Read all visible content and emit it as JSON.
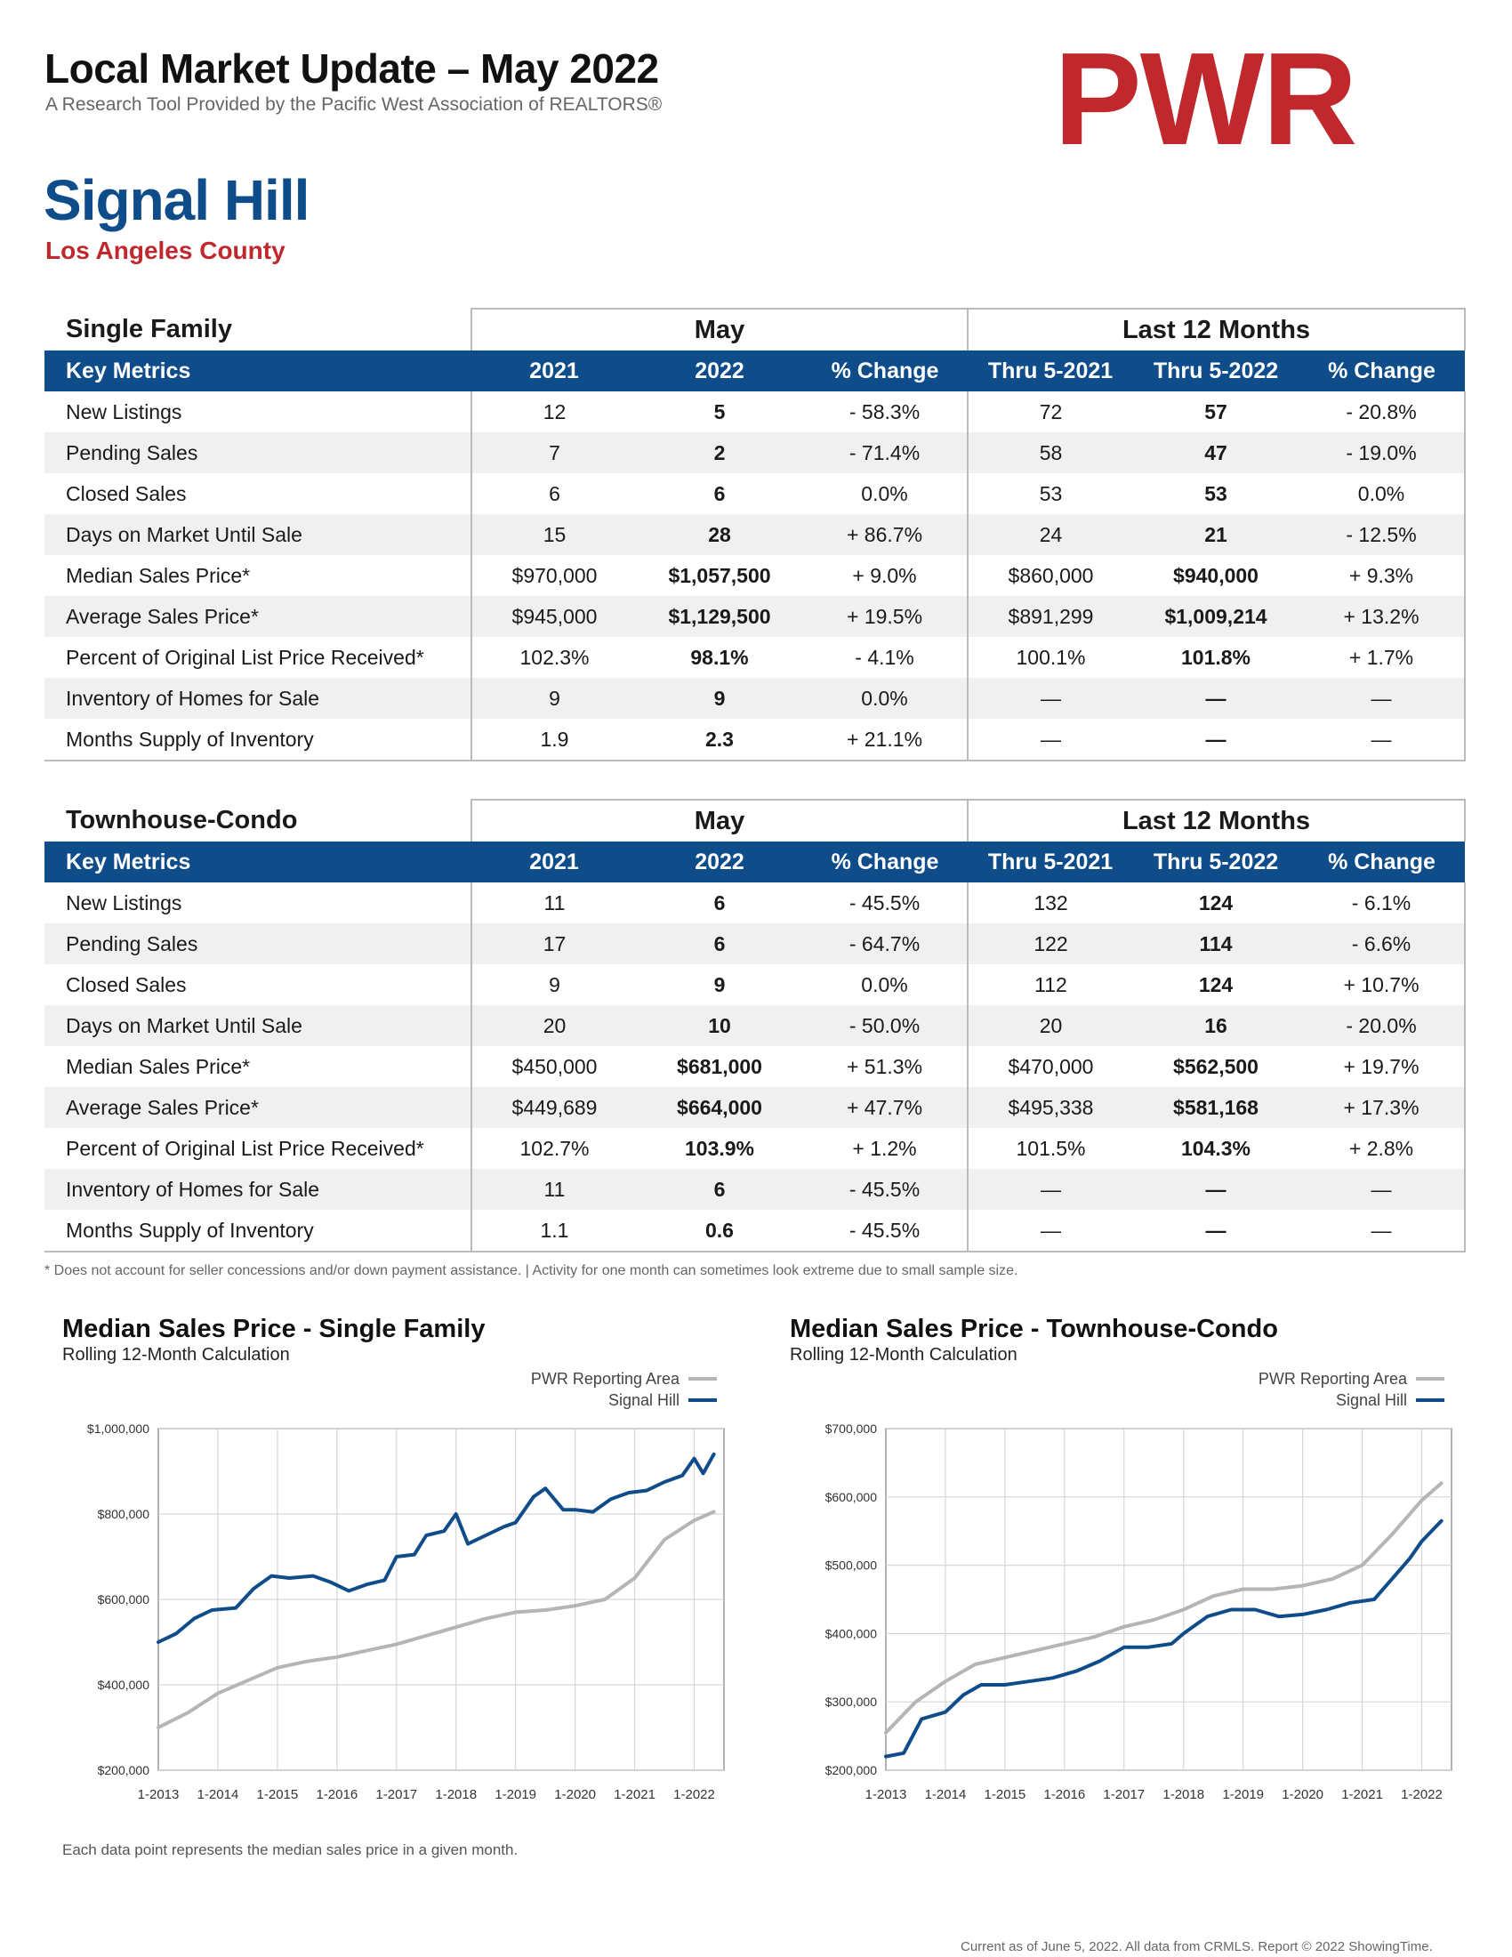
{
  "header": {
    "title": "Local Market Update – May 2022",
    "subtitle": "A Research Tool Provided by the Pacific West Association of REALTORS®",
    "logo_text": "PWR",
    "city": "Signal Hill",
    "county": "Los Angeles County"
  },
  "columns": {
    "key_metrics": "Key Metrics",
    "group_month": "May",
    "group_12": "Last 12 Months",
    "c2021": "2021",
    "c2022": "2022",
    "pct": "% Change",
    "thru2021": "Thru 5-2021",
    "thru2022": "Thru 5-2022"
  },
  "tables": [
    {
      "section": "Single Family",
      "rows": [
        [
          "New Listings",
          "12",
          "5",
          "- 58.3%",
          "72",
          "57",
          "- 20.8%"
        ],
        [
          "Pending Sales",
          "7",
          "2",
          "- 71.4%",
          "58",
          "47",
          "- 19.0%"
        ],
        [
          "Closed Sales",
          "6",
          "6",
          "0.0%",
          "53",
          "53",
          "0.0%"
        ],
        [
          "Days on Market Until Sale",
          "15",
          "28",
          "+ 86.7%",
          "24",
          "21",
          "- 12.5%"
        ],
        [
          "Median Sales Price*",
          "$970,000",
          "$1,057,500",
          "+ 9.0%",
          "$860,000",
          "$940,000",
          "+ 9.3%"
        ],
        [
          "Average Sales Price*",
          "$945,000",
          "$1,129,500",
          "+ 19.5%",
          "$891,299",
          "$1,009,214",
          "+ 13.2%"
        ],
        [
          "Percent of Original List Price Received*",
          "102.3%",
          "98.1%",
          "- 4.1%",
          "100.1%",
          "101.8%",
          "+ 1.7%"
        ],
        [
          "Inventory of Homes for Sale",
          "9",
          "9",
          "0.0%",
          "—",
          "—",
          "—"
        ],
        [
          "Months Supply of Inventory",
          "1.9",
          "2.3",
          "+ 21.1%",
          "—",
          "—",
          "—"
        ]
      ]
    },
    {
      "section": "Townhouse-Condo",
      "rows": [
        [
          "New Listings",
          "11",
          "6",
          "- 45.5%",
          "132",
          "124",
          "- 6.1%"
        ],
        [
          "Pending Sales",
          "17",
          "6",
          "- 64.7%",
          "122",
          "114",
          "- 6.6%"
        ],
        [
          "Closed Sales",
          "9",
          "9",
          "0.0%",
          "112",
          "124",
          "+ 10.7%"
        ],
        [
          "Days on Market Until Sale",
          "20",
          "10",
          "- 50.0%",
          "20",
          "16",
          "- 20.0%"
        ],
        [
          "Median Sales Price*",
          "$450,000",
          "$681,000",
          "+ 51.3%",
          "$470,000",
          "$562,500",
          "+ 19.7%"
        ],
        [
          "Average Sales Price*",
          "$449,689",
          "$664,000",
          "+ 47.7%",
          "$495,338",
          "$581,168",
          "+ 17.3%"
        ],
        [
          "Percent of Original List Price Received*",
          "102.7%",
          "103.9%",
          "+ 1.2%",
          "101.5%",
          "104.3%",
          "+ 2.8%"
        ],
        [
          "Inventory of Homes for Sale",
          "11",
          "6",
          "- 45.5%",
          "—",
          "—",
          "—"
        ],
        [
          "Months Supply of Inventory",
          "1.1",
          "0.6",
          "- 45.5%",
          "—",
          "—",
          "—"
        ]
      ]
    }
  ],
  "footnote": "* Does not account for seller concessions and/or down payment assistance. | Activity for one month can sometimes look extreme due to small sample size.",
  "caption": "Each data point represents the median sales price in a given month.",
  "credit": "Current as of June 5, 2022. All data from CRMLS. Report © 2022 ShowingTime.",
  "colors": {
    "brand_blue": "#0f4c8a",
    "brand_red": "#c0282d",
    "area_gray": "#b5b5b5"
  },
  "chart_data": [
    {
      "type": "line",
      "title": "Median Sales Price - Single Family",
      "subtitle": "Rolling 12-Month Calculation",
      "ylim": [
        200000,
        1000000
      ],
      "yticks": [
        200000,
        400000,
        600000,
        800000,
        1000000
      ],
      "ytick_labels": [
        "$200,000",
        "$400,000",
        "$600,000",
        "$800,000",
        "$1,000,000"
      ],
      "xtick_labels": [
        "1-2013",
        "1-2014",
        "1-2015",
        "1-2016",
        "1-2017",
        "1-2018",
        "1-2019",
        "1-2020",
        "1-2021",
        "1-2022"
      ],
      "x_start_year": 2013,
      "series": [
        {
          "name": "PWR Reporting Area",
          "color": "#b5b5b5",
          "points": [
            [
              2013.0,
              300000
            ],
            [
              2013.5,
              335000
            ],
            [
              2014.0,
              380000
            ],
            [
              2014.5,
              410000
            ],
            [
              2015.0,
              440000
            ],
            [
              2015.5,
              455000
            ],
            [
              2016.0,
              465000
            ],
            [
              2016.5,
              480000
            ],
            [
              2017.0,
              495000
            ],
            [
              2017.5,
              515000
            ],
            [
              2018.0,
              535000
            ],
            [
              2018.5,
              555000
            ],
            [
              2019.0,
              570000
            ],
            [
              2019.5,
              575000
            ],
            [
              2020.0,
              585000
            ],
            [
              2020.5,
              600000
            ],
            [
              2021.0,
              650000
            ],
            [
              2021.5,
              740000
            ],
            [
              2022.0,
              785000
            ],
            [
              2022.33,
              805000
            ]
          ]
        },
        {
          "name": "Signal Hill",
          "color": "#0f4c8a",
          "points": [
            [
              2013.0,
              500000
            ],
            [
              2013.3,
              520000
            ],
            [
              2013.6,
              555000
            ],
            [
              2013.9,
              575000
            ],
            [
              2014.3,
              580000
            ],
            [
              2014.6,
              625000
            ],
            [
              2014.9,
              655000
            ],
            [
              2015.2,
              650000
            ],
            [
              2015.6,
              655000
            ],
            [
              2015.9,
              640000
            ],
            [
              2016.2,
              620000
            ],
            [
              2016.5,
              635000
            ],
            [
              2016.8,
              645000
            ],
            [
              2017.0,
              700000
            ],
            [
              2017.3,
              705000
            ],
            [
              2017.5,
              750000
            ],
            [
              2017.8,
              760000
            ],
            [
              2018.0,
              800000
            ],
            [
              2018.2,
              730000
            ],
            [
              2018.5,
              750000
            ],
            [
              2018.8,
              770000
            ],
            [
              2019.0,
              780000
            ],
            [
              2019.3,
              840000
            ],
            [
              2019.5,
              860000
            ],
            [
              2019.8,
              810000
            ],
            [
              2020.0,
              810000
            ],
            [
              2020.3,
              805000
            ],
            [
              2020.6,
              835000
            ],
            [
              2020.9,
              850000
            ],
            [
              2021.2,
              855000
            ],
            [
              2021.5,
              875000
            ],
            [
              2021.8,
              890000
            ],
            [
              2022.0,
              930000
            ],
            [
              2022.15,
              895000
            ],
            [
              2022.33,
              940000
            ]
          ]
        }
      ]
    },
    {
      "type": "line",
      "title": "Median Sales Price - Townhouse-Condo",
      "subtitle": "Rolling 12-Month Calculation",
      "ylim": [
        200000,
        700000
      ],
      "yticks": [
        200000,
        300000,
        400000,
        500000,
        600000,
        700000
      ],
      "ytick_labels": [
        "$200,000",
        "$300,000",
        "$400,000",
        "$500,000",
        "$600,000",
        "$700,000"
      ],
      "xtick_labels": [
        "1-2013",
        "1-2014",
        "1-2015",
        "1-2016",
        "1-2017",
        "1-2018",
        "1-2019",
        "1-2020",
        "1-2021",
        "1-2022"
      ],
      "x_start_year": 2013,
      "series": [
        {
          "name": "PWR Reporting Area",
          "color": "#b5b5b5",
          "points": [
            [
              2013.0,
              255000
            ],
            [
              2013.5,
              300000
            ],
            [
              2014.0,
              330000
            ],
            [
              2014.5,
              355000
            ],
            [
              2015.0,
              365000
            ],
            [
              2015.5,
              375000
            ],
            [
              2016.0,
              385000
            ],
            [
              2016.5,
              395000
            ],
            [
              2017.0,
              410000
            ],
            [
              2017.5,
              420000
            ],
            [
              2018.0,
              435000
            ],
            [
              2018.5,
              455000
            ],
            [
              2019.0,
              465000
            ],
            [
              2019.5,
              465000
            ],
            [
              2020.0,
              470000
            ],
            [
              2020.5,
              480000
            ],
            [
              2021.0,
              500000
            ],
            [
              2021.5,
              545000
            ],
            [
              2022.0,
              595000
            ],
            [
              2022.33,
              620000
            ]
          ]
        },
        {
          "name": "Signal Hill",
          "color": "#0f4c8a",
          "points": [
            [
              2013.0,
              220000
            ],
            [
              2013.3,
              225000
            ],
            [
              2013.6,
              275000
            ],
            [
              2014.0,
              285000
            ],
            [
              2014.3,
              310000
            ],
            [
              2014.6,
              325000
            ],
            [
              2015.0,
              325000
            ],
            [
              2015.4,
              330000
            ],
            [
              2015.8,
              335000
            ],
            [
              2016.2,
              345000
            ],
            [
              2016.6,
              360000
            ],
            [
              2017.0,
              380000
            ],
            [
              2017.4,
              380000
            ],
            [
              2017.8,
              385000
            ],
            [
              2018.0,
              400000
            ],
            [
              2018.4,
              425000
            ],
            [
              2018.8,
              435000
            ],
            [
              2019.2,
              435000
            ],
            [
              2019.6,
              425000
            ],
            [
              2020.0,
              428000
            ],
            [
              2020.4,
              435000
            ],
            [
              2020.8,
              445000
            ],
            [
              2021.2,
              450000
            ],
            [
              2021.5,
              480000
            ],
            [
              2021.8,
              510000
            ],
            [
              2022.0,
              535000
            ],
            [
              2022.33,
              565000
            ]
          ]
        }
      ]
    }
  ]
}
